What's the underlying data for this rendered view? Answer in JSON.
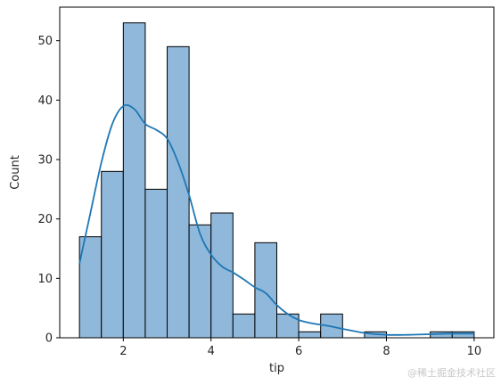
{
  "chart_data": {
    "type": "bar",
    "subtype": "histogram_with_kde",
    "title": "",
    "xlabel": "tip",
    "ylabel": "Count",
    "xlim": [
      0.55,
      10.45
    ],
    "ylim": [
      0,
      55.65
    ],
    "bin_edges": [
      1.0,
      1.5,
      2.0,
      2.5,
      3.0,
      3.5,
      4.0,
      4.5,
      5.0,
      5.5,
      6.0,
      6.5,
      7.0,
      7.5,
      8.0,
      8.5,
      9.0,
      9.5,
      10.0
    ],
    "values": [
      17,
      28,
      53,
      25,
      49,
      19,
      21,
      4,
      16,
      4,
      1,
      4,
      0,
      1,
      0,
      0,
      1,
      1
    ],
    "x_ticks": [
      2,
      4,
      6,
      8,
      10
    ],
    "y_ticks": [
      0,
      10,
      20,
      30,
      40,
      50
    ],
    "kde": {
      "x": [
        1.0,
        1.25,
        1.5,
        1.75,
        2.0,
        2.25,
        2.5,
        2.75,
        3.0,
        3.25,
        3.5,
        3.75,
        4.0,
        4.25,
        4.5,
        4.75,
        5.0,
        5.25,
        5.5,
        5.75,
        6.0,
        6.25,
        6.5,
        6.75,
        7.0,
        7.5,
        8.0,
        8.5,
        9.0,
        9.5,
        10.0
      ],
      "y": [
        12.5,
        21,
        29.5,
        36,
        39,
        38.5,
        36,
        35,
        33.5,
        29.5,
        24,
        17.5,
        14,
        12,
        11,
        9.8,
        8.5,
        7.5,
        5.5,
        4,
        3,
        2.5,
        2.2,
        1.9,
        1.5,
        0.8,
        0.5,
        0.5,
        0.6,
        0.7,
        0.7
      ]
    },
    "bar_color": "#8fb8db",
    "bar_edge_color": "#000000",
    "kde_color": "#1f77b4",
    "grid": false,
    "legend": "none"
  },
  "watermark": "@稀土掘金技术社区"
}
